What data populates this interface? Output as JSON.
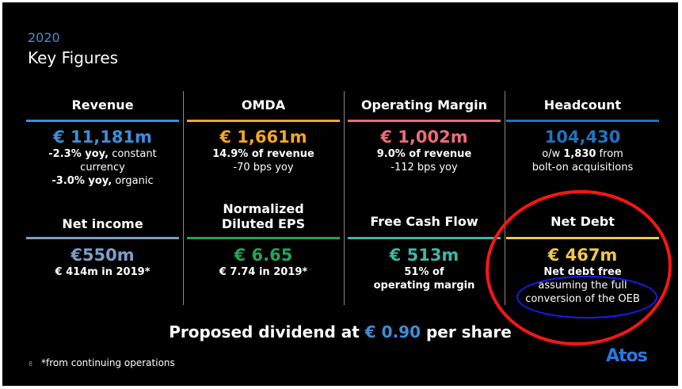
{
  "slide": {
    "year": "2020",
    "title": "Key Figures",
    "colors": {
      "blue": "#3b8fd9",
      "orange": "#f5a623",
      "red": "#ef6b75",
      "navy": "#1f73c1",
      "gray_blue": "#7b9fc7",
      "green": "#22a55a",
      "teal": "#3fb7a5",
      "gold": "#f2c84b"
    }
  },
  "metrics_top": [
    {
      "title": "Revenue",
      "value": "€ 11,181m",
      "line1_bold": "-2.3% yoy,",
      "line1_rest": " constant currency",
      "line2_bold": "-3.0% yoy,",
      "line2_rest": " organic"
    },
    {
      "title": "OMDA",
      "value": "€ 1,661m",
      "line1": "14.9% of revenue",
      "line2": "-70 bps yoy"
    },
    {
      "title": "Operating Margin",
      "value": "€ 1,002m",
      "line1": "9.0% of revenue",
      "line2": "-112 bps yoy"
    },
    {
      "title": "Headcount",
      "value": "104,430",
      "line1_pre": "o/w ",
      "line1_bold": "1,830",
      "line1_post": " from",
      "line2": "bolt-on acquisitions"
    }
  ],
  "metrics_bottom": [
    {
      "title": "Net income",
      "value": "€550m",
      "line1": "€ 414m in 2019*"
    },
    {
      "title_line1": "Normalized",
      "title_line2": "Diluted EPS",
      "value": "€ 6.65",
      "line1": "€ 7.74 in 2019*"
    },
    {
      "title": "Free Cash Flow",
      "value": "€ 513m",
      "line1": "51% of",
      "line2": "operating margin"
    },
    {
      "title": "Net Debt",
      "value": "€ 467m",
      "line1": "Net debt free",
      "line2": "assuming the full",
      "line3": "conversion of the OEB"
    }
  ],
  "dividend": {
    "prefix": "Proposed dividend at ",
    "amount": "€ 0.90",
    "suffix": " per share"
  },
  "footer": {
    "page_number": "8",
    "note": "*from continuing operations",
    "logo_text": "Atos"
  }
}
